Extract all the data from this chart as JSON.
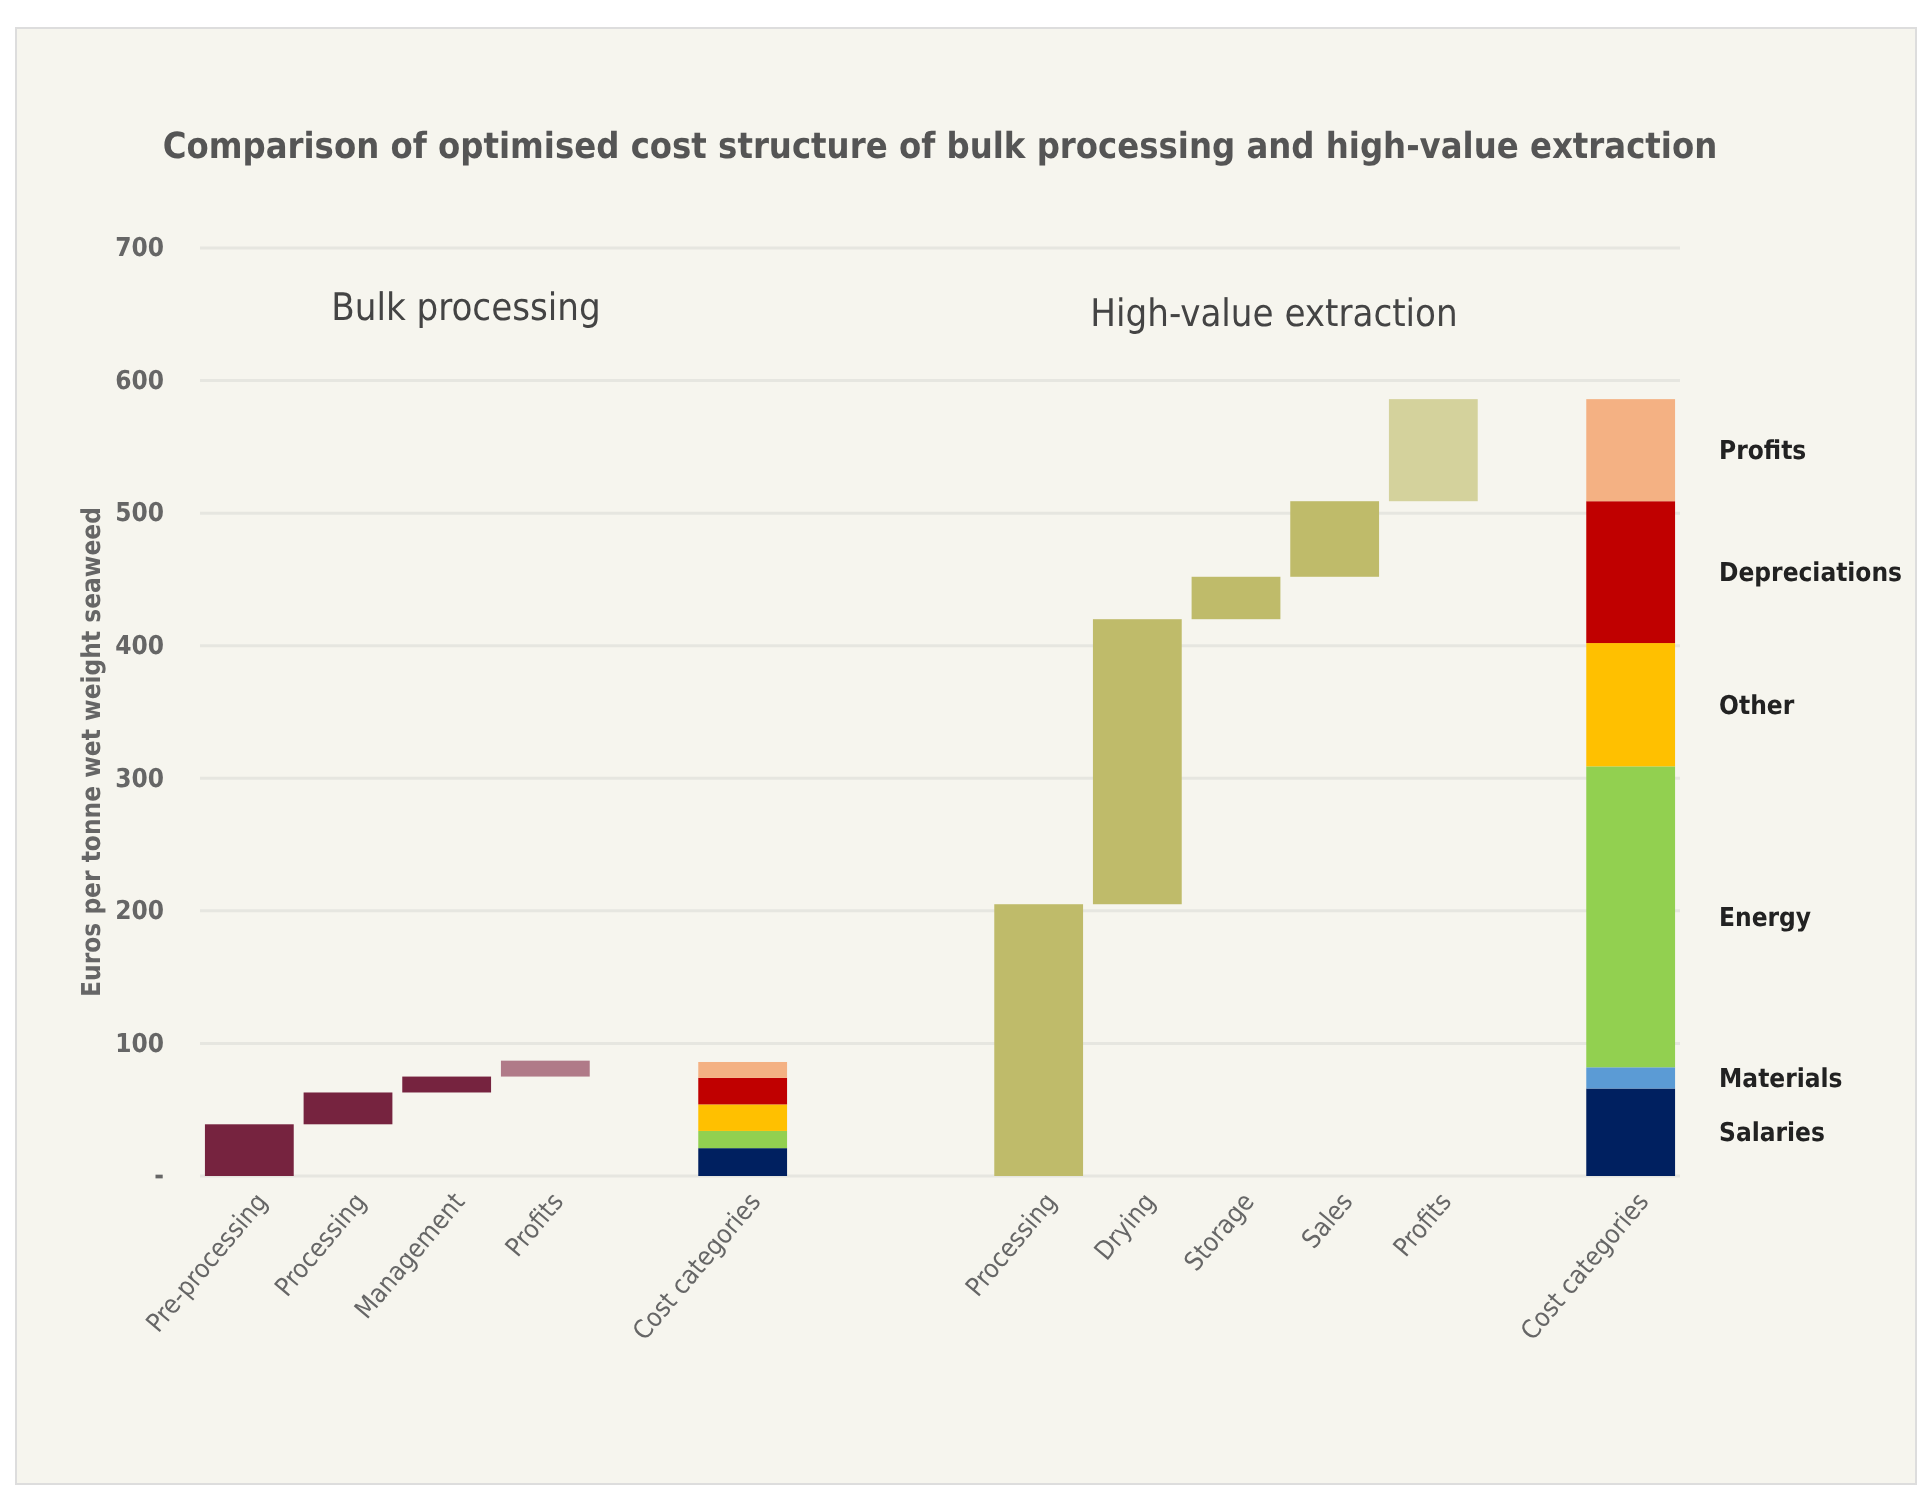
{
  "chart_data": {
    "type": "bar",
    "title": "Comparison of optimised cost structure of bulk processing and high-value extraction",
    "ylabel": "Euros per tonne wet weight seaweed",
    "annotations": [
      "Bulk processing",
      "High-value extraction"
    ],
    "categories": [
      "Pre-processing",
      "Processing",
      "Management",
      "Profits",
      null,
      "Cost categories",
      null,
      null,
      "Processing",
      "Drying",
      "Storage",
      "Sales",
      "Profits",
      null,
      "Cost categories"
    ],
    "stacked": true,
    "grid": "y",
    "legend": false,
    "ylim": [
      0,
      700
    ],
    "yticks": [
      {
        "value": 0,
        "label": "-"
      },
      100,
      200,
      300,
      400,
      500,
      600,
      700
    ],
    "series": [
      {
        "values": [
          39,
          24,
          12,
          12,
          null,
          null,
          null,
          null,
          205,
          215,
          32,
          57,
          77,
          null,
          null
        ],
        "base": [
          0,
          39,
          63,
          75,
          null,
          null,
          null,
          null,
          0,
          205,
          420,
          452,
          509,
          null,
          null
        ],
        "colors": [
          "#76233f",
          "#76233f",
          "#76233f",
          "#b07a88",
          null,
          null,
          null,
          null,
          "#bfbb6a",
          "#bfbb6a",
          "#bfbb6a",
          "#bfbb6a",
          "#d4d29c",
          null,
          null
        ]
      },
      {
        "name": "Salaries",
        "color": "#002060",
        "values": [
          null,
          null,
          null,
          null,
          null,
          21,
          null,
          null,
          null,
          null,
          null,
          null,
          null,
          null,
          66
        ]
      },
      {
        "name": "Materials",
        "color": "#5b9bd5",
        "values": [
          null,
          null,
          null,
          null,
          null,
          null,
          null,
          null,
          null,
          null,
          null,
          null,
          null,
          null,
          16
        ]
      },
      {
        "name": "Energy",
        "color": "#92d050",
        "values": [
          null,
          null,
          null,
          null,
          null,
          13,
          null,
          null,
          null,
          null,
          null,
          null,
          null,
          null,
          227
        ]
      },
      {
        "name": "Other",
        "color": "#ffc000",
        "values": [
          null,
          null,
          null,
          null,
          null,
          20,
          null,
          null,
          null,
          null,
          null,
          null,
          null,
          null,
          93
        ]
      },
      {
        "name": "Depreciations",
        "color": "#c00000",
        "values": [
          null,
          null,
          null,
          null,
          null,
          20,
          null,
          null,
          null,
          null,
          null,
          null,
          null,
          null,
          107
        ]
      },
      {
        "name": "Profits",
        "color": "#f4b183",
        "values": [
          null,
          null,
          null,
          null,
          null,
          12,
          null,
          null,
          null,
          null,
          null,
          null,
          null,
          null,
          77
        ]
      }
    ]
  }
}
